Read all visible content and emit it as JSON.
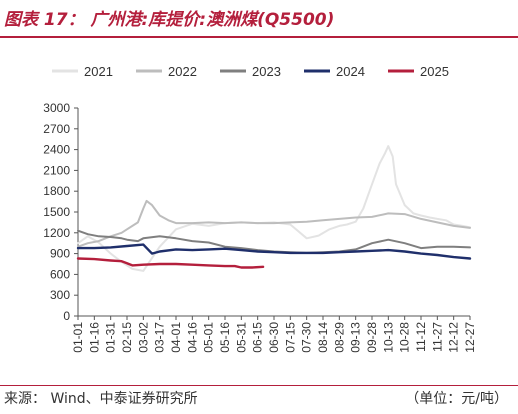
{
  "title": "图表 17：  广州港:库提价:澳洲煤(Q5500)",
  "source": "来源：   Wind、中泰证券研究所",
  "unit": "（单位：元/吨）",
  "chart_data": {
    "type": "line",
    "title": "图表 17：  广州港:库提价:澳洲煤(Q5500)",
    "xlabel": "",
    "ylabel": "",
    "ylim": [
      0,
      3000
    ],
    "yticks": [
      "0",
      "300",
      "600",
      "900",
      "1200",
      "1500",
      "1800",
      "2100",
      "2400",
      "2700",
      "3000"
    ],
    "grid": false,
    "legend_position": "top",
    "x_tick_labels": [
      "01-01",
      "01-16",
      "01-31",
      "02-15",
      "03-02",
      "03-17",
      "04-01",
      "04-16",
      "05-01",
      "05-16",
      "05-31",
      "06-15",
      "06-30",
      "07-15",
      "07-30",
      "08-14",
      "08-29",
      "09-13",
      "09-28",
      "10-13",
      "10-28",
      "11-12",
      "11-27",
      "12-12",
      "12-27"
    ],
    "series": [
      {
        "name": "2021",
        "color": "#e3e3e3",
        "x": [
          "01-01",
          "01-10",
          "01-20",
          "01-31",
          "02-10",
          "02-20",
          "03-02",
          "03-17",
          "04-01",
          "04-16",
          "05-01",
          "05-16",
          "05-31",
          "06-15",
          "06-30",
          "07-15",
          "07-30",
          "08-10",
          "08-20",
          "08-29",
          "09-05",
          "09-13",
          "09-20",
          "09-28",
          "10-05",
          "10-10",
          "10-13",
          "10-17",
          "10-20",
          "10-28",
          "11-05",
          "11-12",
          "11-20",
          "11-27",
          "12-05",
          "12-12",
          "12-20",
          "12-27"
        ],
        "values": [
          1050,
          1150,
          1060,
          900,
          780,
          680,
          650,
          1000,
          1250,
          1330,
          1300,
          1340,
          1350,
          1340,
          1350,
          1320,
          1120,
          1160,
          1250,
          1300,
          1320,
          1360,
          1550,
          1900,
          2200,
          2350,
          2450,
          2300,
          1900,
          1600,
          1480,
          1450,
          1420,
          1400,
          1380,
          1320,
          1300,
          1280
        ]
      },
      {
        "name": "2022",
        "color": "#bdbdbd",
        "x": [
          "01-01",
          "01-10",
          "01-20",
          "01-31",
          "02-10",
          "02-15",
          "02-25",
          "03-02",
          "03-05",
          "03-10",
          "03-17",
          "03-25",
          "04-01",
          "04-16",
          "05-01",
          "05-16",
          "05-31",
          "06-15",
          "06-30",
          "07-15",
          "07-30",
          "08-14",
          "08-29",
          "09-13",
          "09-28",
          "10-13",
          "10-28",
          "11-12",
          "11-27",
          "12-12",
          "12-27"
        ],
        "values": [
          1000,
          1050,
          1080,
          1150,
          1200,
          1250,
          1350,
          1550,
          1660,
          1600,
          1450,
          1380,
          1340,
          1340,
          1350,
          1340,
          1350,
          1340,
          1340,
          1350,
          1360,
          1380,
          1400,
          1420,
          1430,
          1480,
          1470,
          1400,
          1350,
          1300,
          1270
        ]
      },
      {
        "name": "2023",
        "color": "#7f7f7f",
        "x": [
          "01-01",
          "01-10",
          "01-20",
          "01-31",
          "02-10",
          "02-15",
          "02-25",
          "03-02",
          "03-17",
          "04-01",
          "04-16",
          "05-01",
          "05-16",
          "05-31",
          "06-15",
          "06-30",
          "07-15",
          "07-30",
          "08-14",
          "08-29",
          "09-13",
          "09-28",
          "10-13",
          "10-28",
          "11-12",
          "11-27",
          "12-12",
          "12-27"
        ],
        "values": [
          1230,
          1180,
          1150,
          1140,
          1120,
          1100,
          1080,
          1120,
          1150,
          1120,
          1080,
          1060,
          1000,
          980,
          950,
          930,
          920,
          910,
          920,
          930,
          960,
          1050,
          1100,
          1050,
          980,
          1000,
          1000,
          990
        ]
      },
      {
        "name": "2024",
        "color": "#1f2f6b",
        "x": [
          "01-01",
          "01-16",
          "01-31",
          "02-15",
          "03-02",
          "03-10",
          "03-17",
          "04-01",
          "04-16",
          "05-01",
          "05-16",
          "05-31",
          "06-15",
          "06-30",
          "07-15",
          "07-30",
          "08-14",
          "08-29",
          "09-13",
          "09-28",
          "10-13",
          "10-28",
          "11-12",
          "11-27",
          "12-12",
          "12-27"
        ],
        "values": [
          980,
          980,
          990,
          1010,
          1030,
          900,
          930,
          960,
          950,
          960,
          970,
          950,
          930,
          920,
          910,
          910,
          910,
          920,
          930,
          940,
          950,
          930,
          900,
          880,
          850,
          830
        ]
      },
      {
        "name": "2025",
        "color": "#b41f3c",
        "x": [
          "01-01",
          "01-16",
          "01-31",
          "02-10",
          "02-15",
          "02-20",
          "03-02",
          "03-17",
          "04-01",
          "04-16",
          "05-01",
          "05-16",
          "05-25",
          "05-31",
          "06-10",
          "06-20"
        ],
        "values": [
          830,
          820,
          800,
          790,
          760,
          730,
          740,
          750,
          750,
          740,
          730,
          720,
          720,
          700,
          700,
          710
        ]
      }
    ]
  }
}
